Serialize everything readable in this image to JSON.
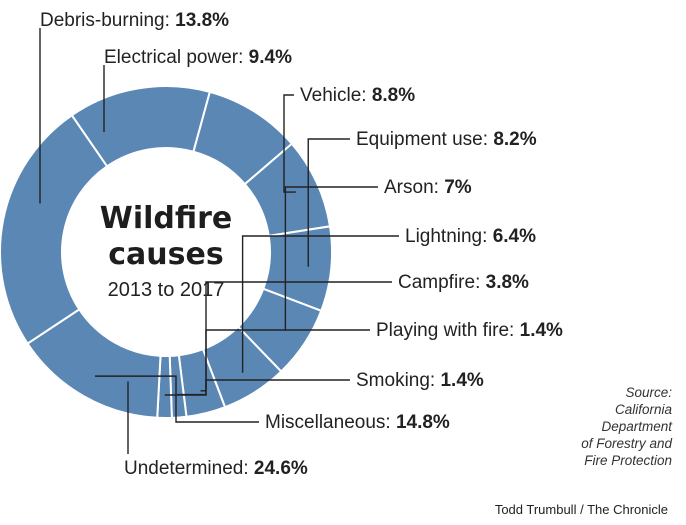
{
  "chart_data": {
    "type": "pie",
    "title": "Wildfire causes",
    "subtitle": "2013 to 2017",
    "slices": [
      {
        "label": "Debris-burning:",
        "pct_text": "13.8%",
        "value": 13.8
      },
      {
        "label": "Electrical power:",
        "pct_text": "9.4%",
        "value": 9.4
      },
      {
        "label": "Vehicle:",
        "pct_text": "8.8%",
        "value": 8.8
      },
      {
        "label": "Equipment use:",
        "pct_text": "8.2%",
        "value": 8.2
      },
      {
        "label": "Arson:",
        "pct_text": "7%",
        "value": 7
      },
      {
        "label": "Lightning:",
        "pct_text": "6.4%",
        "value": 6.4
      },
      {
        "label": "Campfire:",
        "pct_text": "3.8%",
        "value": 3.8
      },
      {
        "label": "Playing with fire:",
        "pct_text": "1.4%",
        "value": 1.4
      },
      {
        "label": "Smoking:",
        "pct_text": "1.4%",
        "value": 1.4
      },
      {
        "label": "Miscellaneous:",
        "pct_text": "14.8%",
        "value": 14.8
      },
      {
        "label": "Undetermined:",
        "pct_text": "24.6%",
        "value": 24.6
      }
    ],
    "colors": {
      "slice": "#5b87b5",
      "separator": "#ffffff",
      "leader": "#222222"
    }
  },
  "source": "Source:\nCalifornia\nDepartment\nof Forestry and\nFire Protection",
  "credit": "Todd Trumbull / The Chronicle"
}
